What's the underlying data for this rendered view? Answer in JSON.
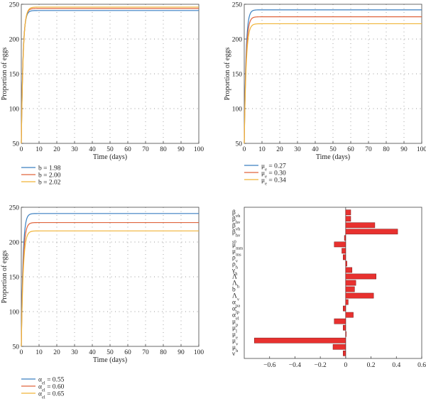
{
  "chart_data": [
    {
      "id": "top-left",
      "type": "line",
      "xlabel": "Time (days)",
      "ylabel": "Proportion of eggs",
      "xlim": [
        0,
        100
      ],
      "ylim": [
        50,
        250
      ],
      "xticks": [
        0,
        10,
        20,
        30,
        40,
        50,
        60,
        70,
        80,
        90,
        100
      ],
      "yticks": [
        50,
        100,
        150,
        200,
        250
      ],
      "grid": true,
      "legend_position": "below",
      "series": [
        {
          "name": "b = 1.98",
          "color": "#3a7fc1",
          "start": 50,
          "plateau": 241,
          "rate": 1.05
        },
        {
          "name": "b = 2.00",
          "color": "#e0643c",
          "start": 50,
          "plateau": 244,
          "rate": 1.0
        },
        {
          "name": "b = 2.02",
          "color": "#f0b437",
          "start": 50,
          "plateau": 246,
          "rate": 0.95
        }
      ]
    },
    {
      "id": "top-right",
      "type": "line",
      "xlabel": "Time (days)",
      "ylabel": "Proportion of eggs",
      "xlim": [
        0,
        100
      ],
      "ylim": [
        50,
        250
      ],
      "xticks": [
        0,
        10,
        20,
        30,
        40,
        50,
        60,
        70,
        80,
        90,
        100
      ],
      "yticks": [
        50,
        100,
        150,
        200,
        250
      ],
      "grid": true,
      "legend_position": "below",
      "series": [
        {
          "sym": "μ",
          "sub": "e",
          "rest": " = 0.27",
          "name": "μe = 0.27",
          "color": "#3a7fc1",
          "start": 50,
          "plateau": 242,
          "rate": 1.05
        },
        {
          "sym": "μ",
          "sub": "e",
          "rest": " = 0.30",
          "name": "μe = 0.30",
          "color": "#e0643c",
          "start": 50,
          "plateau": 232,
          "rate": 1.0
        },
        {
          "sym": "μ",
          "sub": "e",
          "rest": " = 0.34",
          "name": "μe = 0.34",
          "color": "#f0b437",
          "start": 50,
          "plateau": 222,
          "rate": 0.95
        }
      ]
    },
    {
      "id": "bottom-left",
      "type": "line",
      "xlabel": "Time (days)",
      "ylabel": "Proportion of eggs",
      "xlim": [
        0,
        100
      ],
      "ylim": [
        50,
        250
      ],
      "xticks": [
        0,
        10,
        20,
        30,
        40,
        50,
        60,
        70,
        80,
        90,
        100
      ],
      "yticks": [
        50,
        100,
        150,
        200,
        250
      ],
      "grid": true,
      "legend_position": "below",
      "series": [
        {
          "sym": "α",
          "sub": "el",
          "rest": " = 0.55",
          "name": "αel = 0.55",
          "color": "#3a7fc1",
          "start": 50,
          "plateau": 241,
          "rate": 1.05
        },
        {
          "sym": "α",
          "sub": "el",
          "rest": " = 0.60",
          "name": "αel = 0.60",
          "color": "#e0643c",
          "start": 50,
          "plateau": 228,
          "rate": 1.0
        },
        {
          "sym": "α",
          "sub": "el",
          "rest": " = 0.65",
          "name": "αel = 0.65",
          "color": "#f0b437",
          "start": 50,
          "plateau": 216,
          "rate": 0.95
        }
      ]
    },
    {
      "id": "bottom-right",
      "type": "bar",
      "orientation": "horizontal",
      "xlim": [
        -0.8,
        0.6
      ],
      "xticks": [
        -0.6,
        -0.4,
        -0.2,
        0,
        0.2,
        0.4,
        0.6
      ],
      "xtick_labels": [
        "−0.6",
        "−0.4",
        "−0.2",
        "0",
        "0.2",
        "0.4",
        "0.6"
      ],
      "grid": false,
      "bar_color": "#e8312f",
      "categories": [
        {
          "sym": "β",
          "sub": "vh",
          "value": 0.04
        },
        {
          "sym": "β",
          "sub": "hv",
          "value": 0.04
        },
        {
          "sym": "β",
          "sub": "vh",
          "value": 0.23
        },
        {
          "sym": "β",
          "sub": "hv",
          "value": 0.41
        },
        {
          "sym": "",
          "sub": "s0",
          "value": -0.01
        },
        {
          "sym": "μ",
          "sub": "mm",
          "value": -0.09
        },
        {
          "sym": "μ",
          "sub": "ms",
          "value": -0.03
        },
        {
          "sym": "ρ",
          "sub": "v",
          "value": -0.02
        },
        {
          "sym": "ρ",
          "sub": "h",
          "value": 0.01
        },
        {
          "sym": "γ",
          "sub": "h",
          "value": 0.05
        },
        {
          "sym": "Λ",
          "sub": "",
          "value": 0.24
        },
        {
          "sym": "Λ",
          "sub": "h",
          "value": 0.08
        },
        {
          "sym": "b",
          "sub": "",
          "value": 0.07
        },
        {
          "sym": "Λ",
          "sub": "v",
          "value": 0.22
        },
        {
          "sym": "α",
          "sub": "pa",
          "value": 0.02
        },
        {
          "sym": "α",
          "sub": "lp",
          "value": -0.02
        },
        {
          "sym": "α",
          "sub": "el",
          "value": 0.06
        },
        {
          "sym": "μ",
          "sub": "p",
          "value": -0.09
        },
        {
          "sym": "μ",
          "sub": "l",
          "value": -0.02
        },
        {
          "sym": "μ",
          "sub": "e",
          "value": 0.0
        },
        {
          "sym": "μ",
          "sub": "v",
          "value": -0.72
        },
        {
          "sym": "μ",
          "sub": "h",
          "value": -0.1
        },
        {
          "sym": "ν",
          "sub": "",
          "value": -0.02
        }
      ]
    }
  ]
}
